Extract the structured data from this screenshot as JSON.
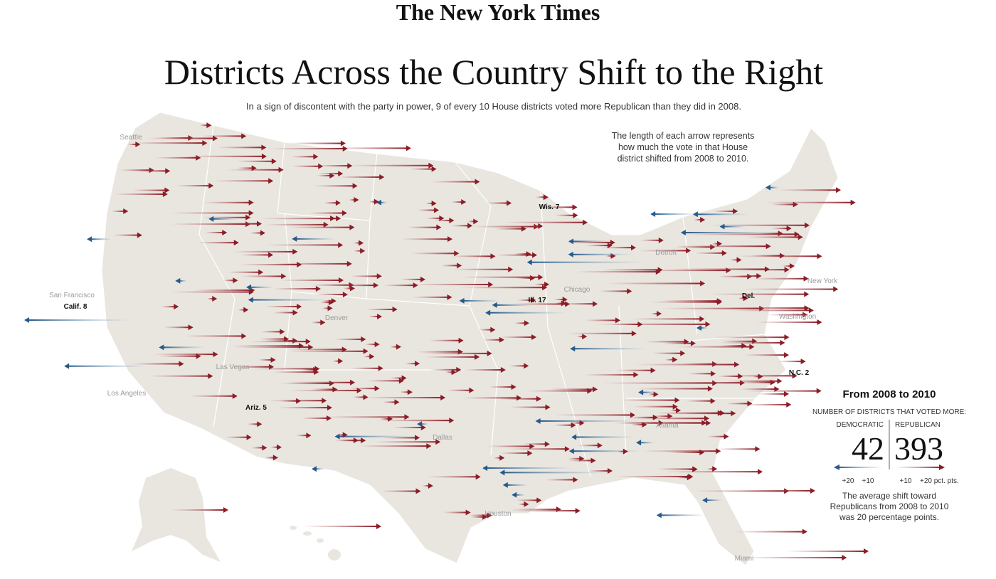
{
  "header": {
    "logo": "The New York Times",
    "title": "Districts Across the Country Shift to the Right",
    "subtitle": "In a sign of discontent with the party in power, 9 of every 10 House districts voted more Republican than they did in 2008."
  },
  "note": [
    "The length of each arrow represents",
    "how much the vote in that House",
    "district shifted from 2008 to 2010."
  ],
  "map_labels": {
    "cities": [
      "Seattle",
      "San Francisco",
      "Las Vegas",
      "Los Angeles",
      "Denver",
      "Dallas",
      "Houston",
      "Chicago",
      "Detroit",
      "New York",
      "Washington",
      "Atlanta",
      "Miami"
    ],
    "districts": [
      "Calif. 8",
      "Ariz. 5",
      "Wis. 7",
      "Ill. 17",
      "Del.",
      "N.C. 2"
    ]
  },
  "legend": {
    "title": "From 2008 to 2010",
    "subtitle": "NUMBER OF DISTRICTS THAT VOTED MORE:",
    "democratic": {
      "label": "DEMOCRATIC",
      "count": 42,
      "scale": [
        "+20",
        "+10"
      ]
    },
    "republican": {
      "label": "REPUBLICAN",
      "count": 393,
      "scale": [
        "+10",
        "+20 pct. pts."
      ]
    },
    "footnote": [
      "The average shift toward",
      "Republicans from 2008 to 2010",
      "was 20 percentage points."
    ]
  }
}
